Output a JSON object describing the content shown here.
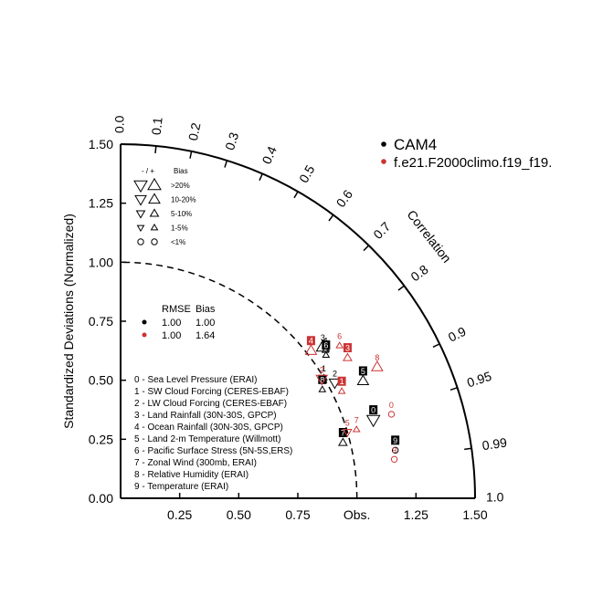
{
  "chart_data": {
    "type": "scatter",
    "subtype": "taylor-diagram",
    "title": "",
    "ylabel": "Standardized Deviations (Normalized)",
    "arc_label": "Correlation",
    "obs_label": "Obs.",
    "ylim": [
      0,
      1.5
    ],
    "xlim": [
      0,
      1.5
    ],
    "y_ticks": [
      "0.00",
      "0.25",
      "0.50",
      "0.75",
      "1.00",
      "1.25",
      "1.50"
    ],
    "x_ticks": [
      "0.25",
      "0.50",
      "0.75",
      "1.25",
      "1.50"
    ],
    "correlation_ticks": [
      "0.0",
      "0.1",
      "0.2",
      "0.3",
      "0.4",
      "0.5",
      "0.6",
      "0.7",
      "0.8",
      "0.9",
      "0.95",
      "0.99",
      "1.0"
    ],
    "reference_std": 1.0,
    "colors": {
      "model1": "#000000",
      "model2": "#cc3333",
      "axis": "#000000"
    },
    "series": [
      {
        "name": "CAM4",
        "color": "#000000",
        "points": [
          {
            "label": "0",
            "std": 1.12,
            "corr": 0.955,
            "bias": ">20%",
            "sign": "-",
            "shape": "box"
          },
          {
            "label": "1",
            "std": 1.0,
            "corr": 0.86,
            "bias": "1-5%",
            "sign": "+"
          },
          {
            "label": "2",
            "std": 1.03,
            "corr": 0.88,
            "bias": "10-20%",
            "sign": "-"
          },
          {
            "label": "3",
            "std": 1.07,
            "corr": 0.8,
            "bias": ">20%",
            "sign": "+"
          },
          {
            "label": "4",
            "std": 1.07,
            "corr": 0.81,
            "bias": "1-5%",
            "sign": "+"
          },
          {
            "label": "5",
            "std": 1.14,
            "corr": 0.9,
            "bias": "10-20%",
            "sign": "+",
            "shape": "box"
          },
          {
            "label": "6",
            "std": 1.06,
            "corr": 0.82,
            "bias": "1-5%",
            "sign": "+",
            "shape": "box"
          },
          {
            "label": "7",
            "std": 0.97,
            "corr": 0.97,
            "bias": "5-10%",
            "sign": "+",
            "shape": "box"
          },
          {
            "label": "8",
            "std": 0.97,
            "corr": 0.88,
            "bias": "1-5%",
            "sign": "+",
            "shape": "box"
          },
          {
            "label": "9",
            "std": 1.18,
            "corr": 0.985,
            "bias": "<1%",
            "sign": "",
            "shape": "box"
          }
        ]
      },
      {
        "name": "f.e21.F2000climo.f19_f19.",
        "color": "#cc3333",
        "points": [
          {
            "label": "0",
            "std": 1.2,
            "corr": 0.955,
            "bias": "<1%",
            "sign": ""
          },
          {
            "label": "1",
            "std": 1.04,
            "corr": 0.9,
            "bias": "1-5%",
            "sign": "+",
            "shape": "box"
          },
          {
            "label": "2",
            "std": 0.99,
            "corr": 0.86,
            "bias": "10-20%",
            "sign": "-"
          },
          {
            "label": "3",
            "std": 1.13,
            "corr": 0.85,
            "bias": "5-10%",
            "sign": "+",
            "shape": "box"
          },
          {
            "label": "4",
            "std": 1.02,
            "corr": 0.79,
            "bias": "10-20%",
            "sign": "+",
            "shape": "box"
          },
          {
            "label": "5",
            "std": 1.0,
            "corr": 0.96,
            "bias": "5-10%",
            "sign": "-"
          },
          {
            "label": "6",
            "std": 1.13,
            "corr": 0.82,
            "bias": "1-5%",
            "sign": "+"
          },
          {
            "label": "7",
            "std": 1.04,
            "corr": 0.96,
            "bias": "1-5%",
            "sign": "+"
          },
          {
            "label": "8",
            "std": 1.22,
            "corr": 0.89,
            "bias": "10-20%",
            "sign": "+"
          },
          {
            "label": "9",
            "std": 1.17,
            "corr": 0.99,
            "bias": "<1%",
            "sign": ""
          }
        ]
      }
    ]
  },
  "legend": {
    "models": [
      "CAM4",
      "f.e21.F2000climo.f19_f19."
    ],
    "bias_header_sign": "- / +",
    "bias_header": "Bias",
    "bias_rows": [
      ">20%",
      "10-20%",
      "5-10%",
      "1-5%",
      "<1%"
    ],
    "summary_headers": [
      "RMSE",
      "Bias"
    ],
    "summary_rows": [
      {
        "rmse": "1.00",
        "bias": "1.00",
        "color": "#000000"
      },
      {
        "rmse": "1.00",
        "bias": "1.64",
        "color": "#cc3333"
      }
    ],
    "cases": [
      "0 - Sea Level Pressure (ERAI)",
      "1 - SW Cloud Forcing (CERES-EBAF)",
      "2 - LW Cloud Forcing (CERES-EBAF)",
      "3 - Land Rainfall (30N-30S, GPCP)",
      "4 - Ocean Rainfall (30N-30S, GPCP)",
      "5 - Land 2-m Temperature (Willmott)",
      "6 - Pacific Surface Stress (5N-5S,ERS)",
      "7 - Zonal Wind (300mb, ERAI)",
      "8 - Relative Humidity (ERAI)",
      "9 - Temperature (ERAI)"
    ]
  }
}
